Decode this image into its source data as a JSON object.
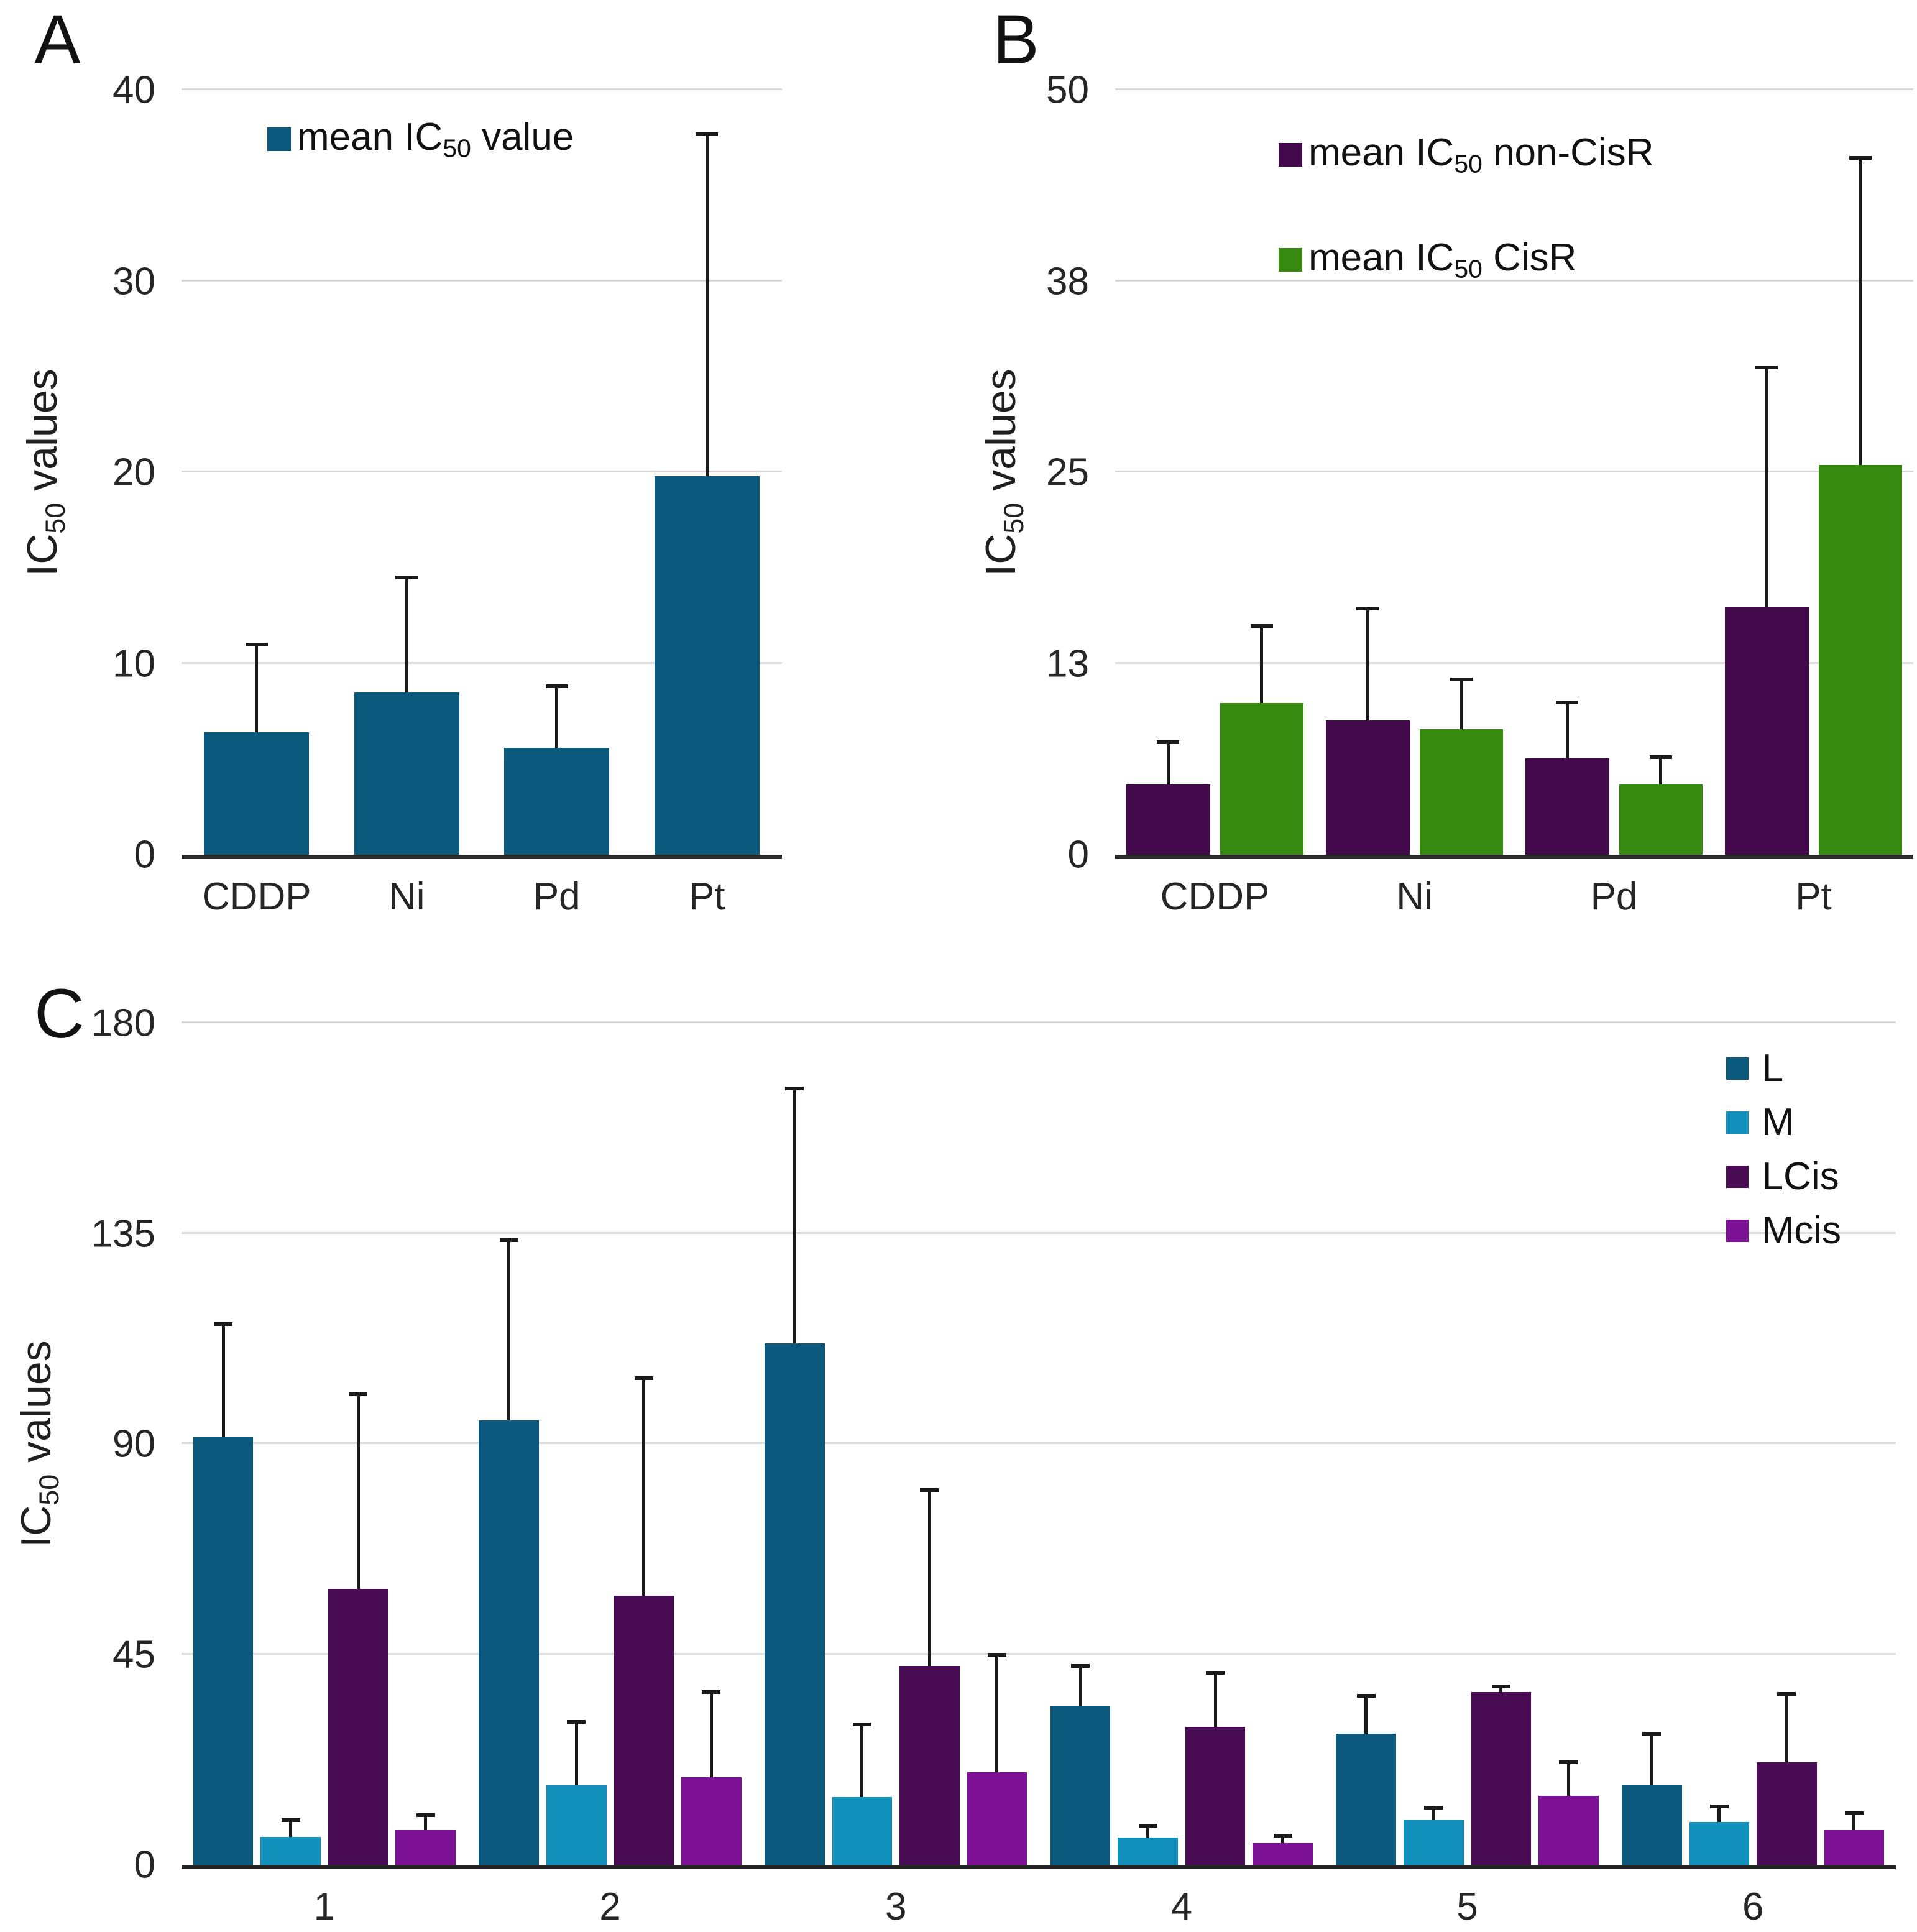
{
  "page": {
    "background": "#ffffff"
  },
  "style": {
    "grid_color": "#d9d9d9",
    "axis_color": "#262626",
    "error_color": "#1a1a1a"
  },
  "chart_data": [
    {
      "id": "A",
      "type": "bar",
      "panel_label": "A",
      "ylabel": "IC50 values",
      "ylabel_parts": {
        "pre": "IC",
        "sub": "50",
        "post": " values"
      },
      "ylim": [
        0,
        40
      ],
      "yticks": [
        "0",
        "10",
        "20",
        "30",
        "40"
      ],
      "categories": [
        "CDDP",
        "Ni",
        "Pd",
        "Pt"
      ],
      "grid": true,
      "legend_position": "top-left-inside",
      "series": [
        {
          "key": "mean-ic50-value",
          "name": "mean IC50 value",
          "name_parts": {
            "pre": "mean IC",
            "sub": "50",
            "post": " value"
          },
          "color": "#0b5a7d",
          "values": [
            6.4,
            8.5,
            5.6,
            19.8
          ],
          "errors_up": [
            4.7,
            6.1,
            3.3,
            18.0
          ]
        }
      ]
    },
    {
      "id": "B",
      "type": "bar",
      "panel_label": "B",
      "ylabel": "IC50 values",
      "ylabel_parts": {
        "pre": "IC",
        "sub": "50",
        "post": " values"
      },
      "ylim": [
        0,
        50
      ],
      "yticks": [
        "0",
        "13",
        "25",
        "38",
        "50"
      ],
      "categories": [
        "CDDP",
        "Ni",
        "Pd",
        "Pt"
      ],
      "grid": true,
      "legend_position": "top-center-inside",
      "series": [
        {
          "key": "mean-ic50-non-cisr",
          "name": "mean IC50 non-CisR",
          "name_parts": {
            "pre": "mean IC",
            "sub": "50",
            "post": " non-CisR"
          },
          "color": "#430a4c",
          "values": [
            4.6,
            8.8,
            6.3,
            16.2
          ],
          "errors_up": [
            2.9,
            7.4,
            3.8,
            15.8
          ]
        },
        {
          "key": "mean-ic50-cisr",
          "name": "mean IC50 CisR",
          "name_parts": {
            "pre": "mean IC",
            "sub": "50",
            "post": " CisR"
          },
          "color": "#368a10",
          "values": [
            9.9,
            8.2,
            4.6,
            25.5
          ],
          "errors_up": [
            5.2,
            3.4,
            1.9,
            20.2
          ]
        }
      ]
    },
    {
      "id": "C",
      "type": "bar",
      "panel_label": "C",
      "ylabel": "IC50 values",
      "ylabel_parts": {
        "pre": "IC",
        "sub": "50",
        "post": " values"
      },
      "ylim": [
        0,
        180
      ],
      "yticks": [
        "0",
        "45",
        "90",
        "135",
        "180"
      ],
      "categories": [
        "1",
        "2",
        "3",
        "4",
        "5",
        "6"
      ],
      "grid": true,
      "legend_position": "top-right-inside",
      "series": [
        {
          "key": "L",
          "name": "L",
          "name_parts": {
            "pre": "L",
            "sub": "",
            "post": ""
          },
          "color": "#0b5a7d",
          "values": [
            91.5,
            95,
            111.5,
            34,
            28,
            17
          ],
          "errors_up": [
            24.5,
            39,
            55,
            9,
            8.5,
            11.5
          ]
        },
        {
          "key": "M",
          "name": "M",
          "name_parts": {
            "pre": "M",
            "sub": "",
            "post": ""
          },
          "color": "#1391bd",
          "values": [
            6,
            17,
            14.5,
            5.8,
            9.6,
            9.2
          ],
          "errors_up": [
            4,
            14,
            16,
            3,
            3,
            3.7
          ]
        },
        {
          "key": "LCis",
          "name": "LCis",
          "name_parts": {
            "pre": "LCis",
            "sub": "",
            "post": ""
          },
          "color": "#4a0b55",
          "values": [
            59,
            57.5,
            42.5,
            29.5,
            37,
            22
          ],
          "errors_up": [
            42,
            47,
            38,
            12,
            1.5,
            15
          ]
        },
        {
          "key": "Mcis",
          "name": "Mcis",
          "name_parts": {
            "pre": "Mcis",
            "sub": "",
            "post": ""
          },
          "color": "#7c1195",
          "values": [
            7.4,
            18.8,
            19.8,
            4.7,
            14.7,
            7.4
          ],
          "errors_up": [
            3.6,
            18.6,
            25.5,
            2,
            7.6,
            4.1
          ]
        }
      ]
    }
  ]
}
